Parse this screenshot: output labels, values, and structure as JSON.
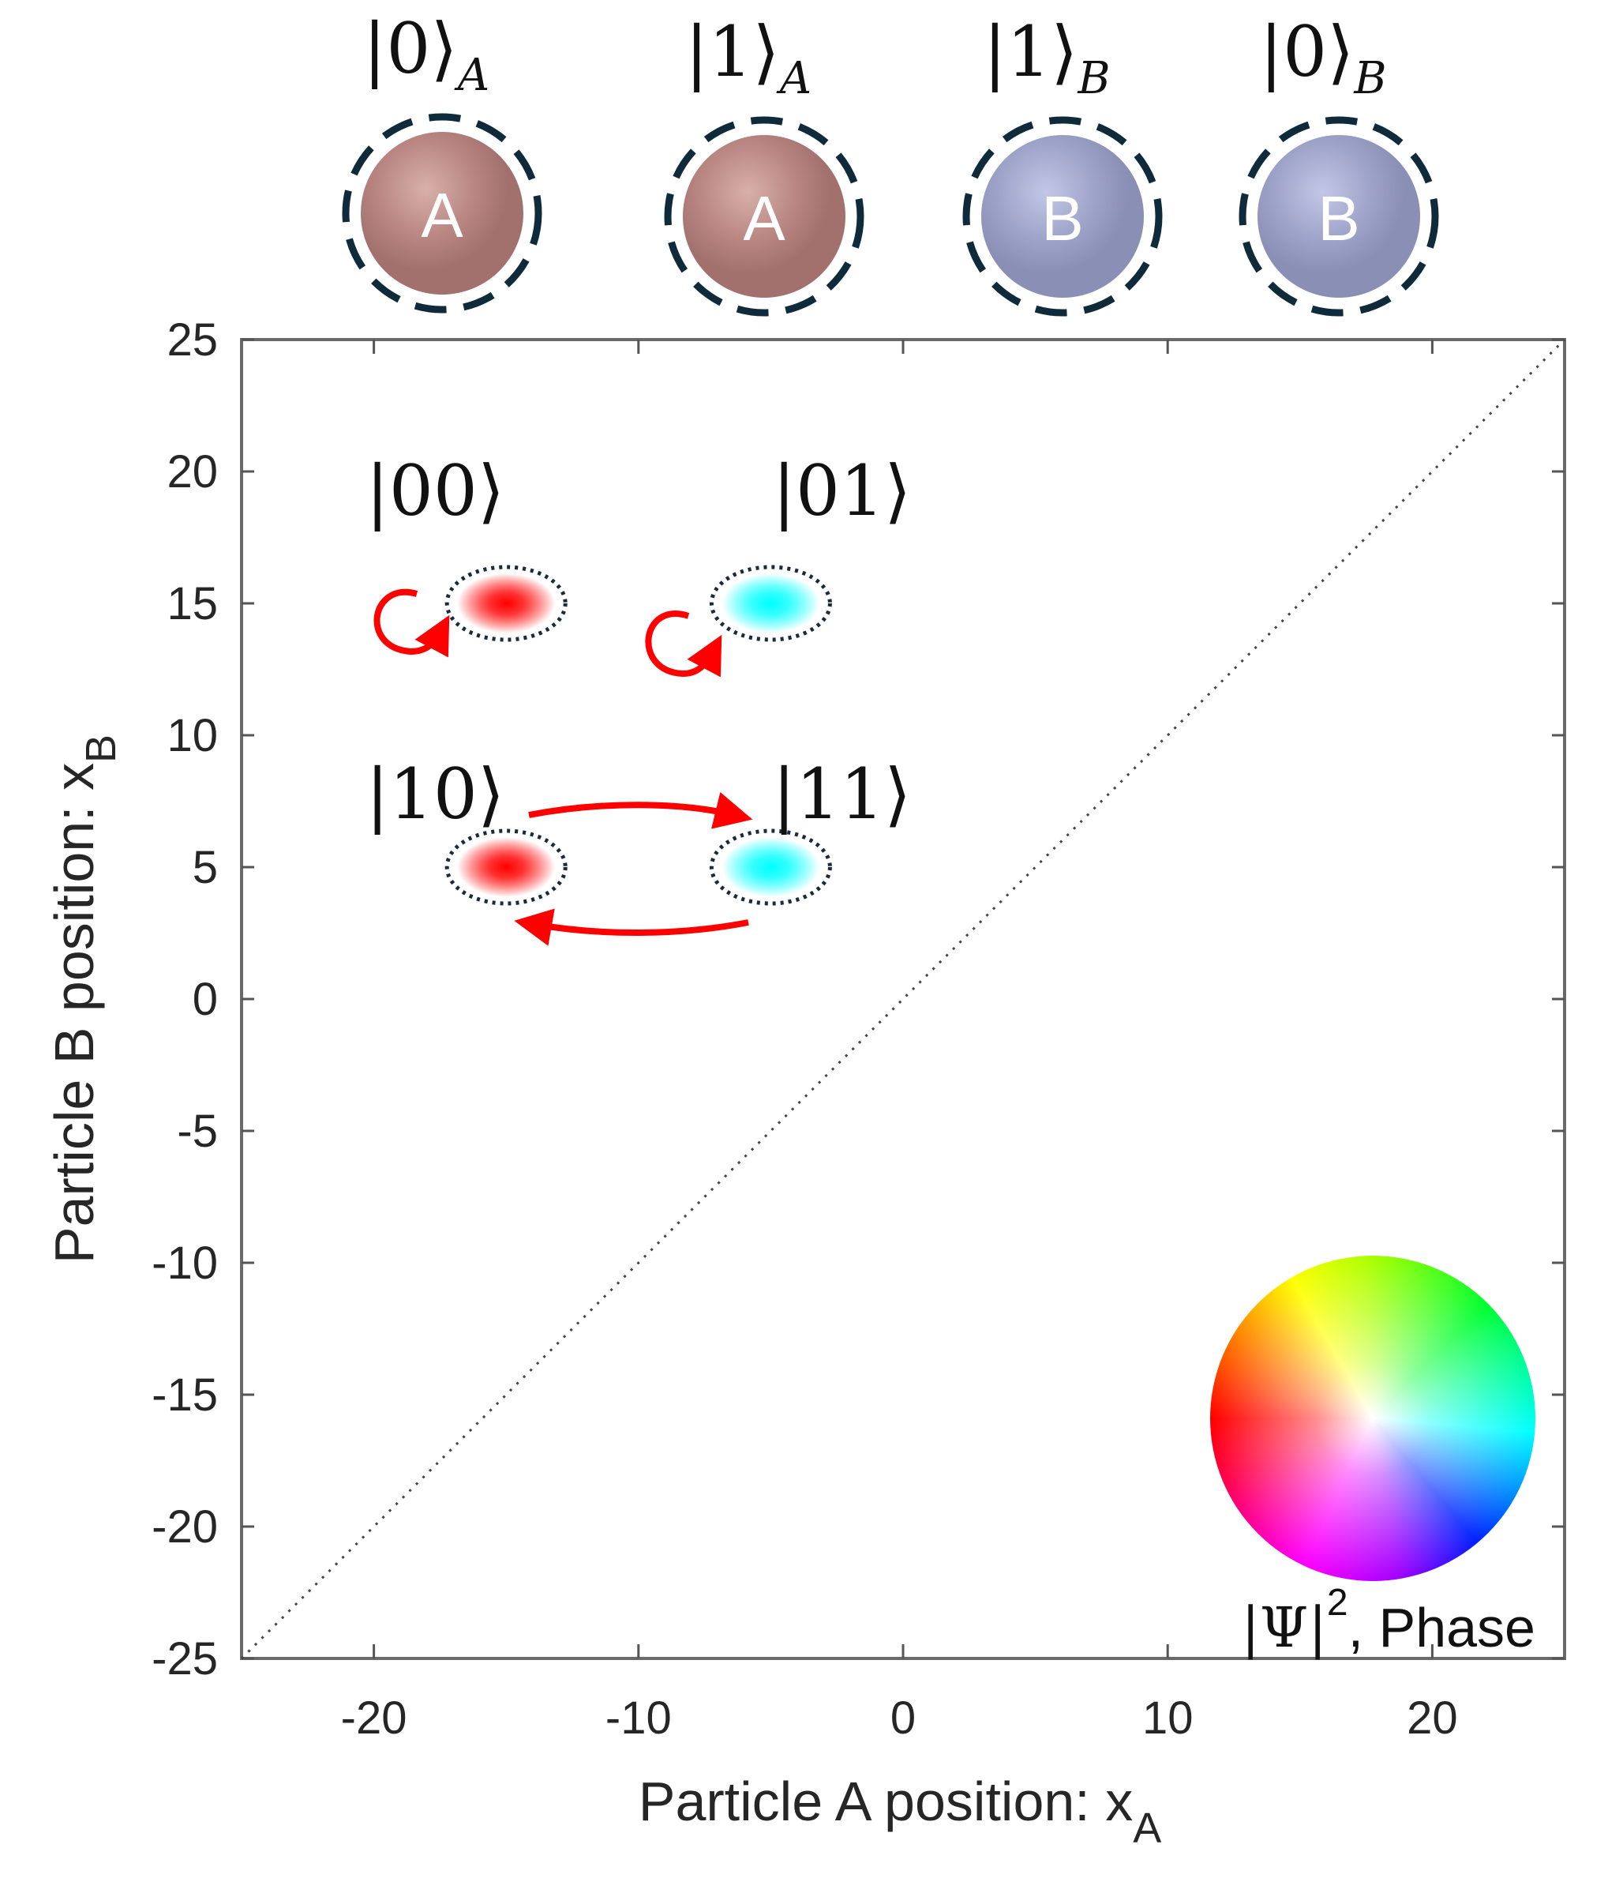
{
  "particles": [
    {
      "ket": "|0⟩",
      "subscript": "A",
      "letter": "A",
      "color": "#b98682"
    },
    {
      "ket": "|1⟩",
      "subscript": "A",
      "letter": "A",
      "color": "#b98682"
    },
    {
      "ket": "|1⟩",
      "subscript": "B",
      "letter": "B",
      "color": "#9ea3c9"
    },
    {
      "ket": "|0⟩",
      "subscript": "B",
      "letter": "B",
      "color": "#9ea3c9"
    }
  ],
  "chart_data": {
    "type": "heatmap",
    "xlabel": "Particle A position: x",
    "xlabel_sub": "A",
    "ylabel": "Particle B position: x",
    "ylabel_sub": "B",
    "xlim": [
      -25,
      25
    ],
    "ylim": [
      -25,
      25
    ],
    "xticks": [
      -20,
      -10,
      0,
      10,
      20
    ],
    "yticks": [
      25,
      20,
      15,
      10,
      5,
      0,
      -5,
      -10,
      -15,
      -20,
      -25
    ],
    "diagonal": "dotted x_A = x_B",
    "states": [
      {
        "label": "|00⟩",
        "x": -15,
        "y": 15,
        "color": "#ff0000"
      },
      {
        "label": "|01⟩",
        "x": -5,
        "y": 15,
        "color": "#00ffff"
      },
      {
        "label": "|10⟩",
        "x": -15,
        "y": 5,
        "color": "#ff0000"
      },
      {
        "label": "|11⟩",
        "x": -5,
        "y": 5,
        "color": "#00ffff"
      }
    ],
    "arrow_color": "#ff0000",
    "colorbar_label": "|Ψ|",
    "colorbar_label_sup": "2",
    "colorbar_label_tail": ", Phase"
  }
}
